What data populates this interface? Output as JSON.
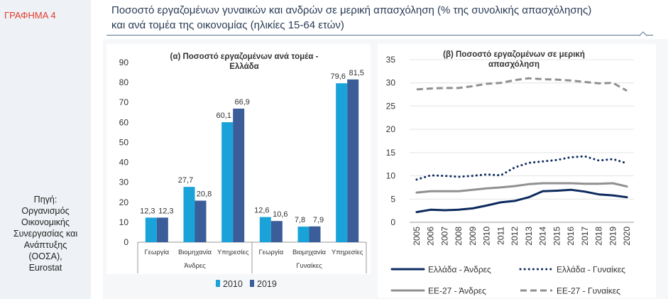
{
  "label": "ΓΡΑΦΗΜΑ 4",
  "source": "Πηγή:\nΟργανισμός\nΟικονομικής\nΣυνεργασίας και\nΑνάπτυξης\n(ΟΟΣΑ),\nEurostat",
  "title": "Ποσοστό εργαζομένων γυναικών και ανδρών σε μερική απασχόληση (% της συνολικής απασχόλησης)\nκαι ανά τομέα της οικονομίας (ηλικίες 15-64 ετών)",
  "colors": {
    "bar2010": "#1aa3d9",
    "bar2019": "#3b5d99",
    "line_dark": "#0d2a5e",
    "line_grey": "#909090",
    "label_red": "#e23b2e"
  },
  "chart_data": [
    {
      "type": "bar",
      "title": "(α) Ποσοστό εργαζομένων ανά τομέα - Ελλάδα",
      "title_lines": [
        "(α) Ποσοστό εργαζομένων ανά τομέα -",
        "Ελλάδα"
      ],
      "ylim": [
        0,
        90
      ],
      "yticks": [
        0,
        10,
        20,
        30,
        40,
        50,
        60,
        70,
        80,
        90
      ],
      "groups": [
        {
          "name": "Άνδρες",
          "categories": [
            "Γεωργία",
            "Βιομηχανία",
            "Υπηρεσίες"
          ]
        },
        {
          "name": "Γυναίκες",
          "categories": [
            "Γεωργία",
            "Βιομηχανία",
            "Υπηρεσίες"
          ]
        }
      ],
      "series": [
        {
          "name": "2010",
          "values": [
            12.3,
            27.7,
            60.1,
            12.6,
            7.8,
            79.6
          ],
          "labels": [
            "12,3",
            "27,7",
            "60,1",
            "12,6",
            "7,8",
            "79,6"
          ]
        },
        {
          "name": "2019",
          "values": [
            12.3,
            20.8,
            66.9,
            10.6,
            7.9,
            81.5
          ],
          "labels": [
            "12,3",
            "20,8",
            "66,9",
            "10,6",
            "7,9",
            "81,5"
          ]
        }
      ]
    },
    {
      "type": "line",
      "title": "(β) Ποσοστό εργαζομένων σε μερική απασχόληση",
      "title_lines": [
        "(β) Ποσοστό εργαζομένων σε μερική",
        "απασχόληση"
      ],
      "ylim": [
        0,
        35
      ],
      "yticks": [
        0,
        5,
        10,
        15,
        20,
        25,
        30,
        35
      ],
      "x": [
        "2005",
        "2006",
        "2007",
        "2008",
        "2009",
        "2010",
        "2011",
        "2012",
        "2013",
        "2014",
        "2015",
        "2016",
        "2017",
        "2018",
        "2019",
        "2020"
      ],
      "series": [
        {
          "name": "Ελλάδα - Άνδρες",
          "style": "solid-dark",
          "values": [
            2.2,
            2.7,
            2.6,
            2.7,
            3.0,
            3.6,
            4.3,
            4.6,
            5.4,
            6.7,
            6.8,
            7.0,
            6.6,
            6.0,
            5.8,
            5.4
          ]
        },
        {
          "name": "Ελλάδα - Γυναίκες",
          "style": "dotted-dark",
          "values": [
            9.2,
            10.1,
            10.0,
            9.8,
            10.0,
            10.3,
            10.1,
            11.8,
            12.8,
            13.1,
            13.4,
            14.0,
            14.2,
            13.3,
            13.6,
            12.7
          ]
        },
        {
          "name": "ΕΕ-27 - Άνδρες",
          "style": "solid-grey",
          "values": [
            6.4,
            6.7,
            6.7,
            6.7,
            7.0,
            7.3,
            7.5,
            7.8,
            8.2,
            8.4,
            8.4,
            8.4,
            8.3,
            8.3,
            8.4,
            7.7
          ]
        },
        {
          "name": "ΕΕ-27 - Γυναίκες",
          "style": "dashed-grey",
          "values": [
            28.6,
            28.8,
            28.9,
            28.9,
            29.3,
            29.8,
            30.0,
            30.6,
            31.0,
            30.8,
            30.7,
            30.5,
            30.2,
            29.9,
            30.0,
            28.3
          ]
        }
      ]
    }
  ]
}
